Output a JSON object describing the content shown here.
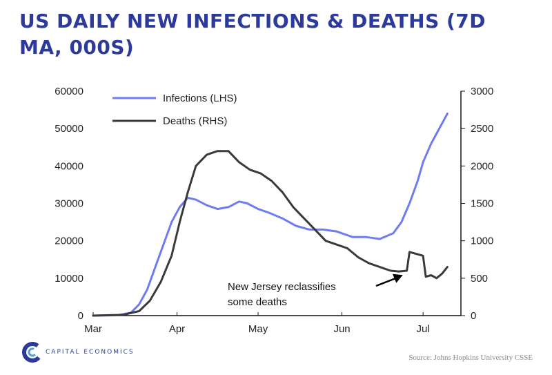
{
  "brand": {
    "name": "CAPITAL ECONOMICS",
    "accent": "#2b3a9b"
  },
  "source": "Source: Johns Hopkins University CSSE",
  "chart_data": {
    "type": "line",
    "title": "US DAILY NEW INFECTIONS & DEATHS (7D MA, 000S)",
    "x_tick_labels": [
      "Mar",
      "Apr",
      "May",
      "Jun",
      "Jul"
    ],
    "y_left": {
      "ylim": [
        0,
        60000
      ],
      "ticks": [
        "0",
        "10000",
        "20000",
        "30000",
        "40000",
        "50000",
        "60000"
      ]
    },
    "y_right": {
      "ylim": [
        0,
        3000
      ],
      "ticks": [
        "0",
        "500",
        "1000",
        "1500",
        "2000",
        "2500",
        "3000"
      ]
    },
    "legend_position": "top-left",
    "grid": false,
    "series": [
      {
        "name": "Infections (LHS)",
        "axis": "left",
        "color": "#6f7bf2",
        "x": [
          "2020-03-01",
          "2020-03-10",
          "2020-03-15",
          "2020-03-18",
          "2020-03-21",
          "2020-03-24",
          "2020-03-27",
          "2020-03-30",
          "2020-04-02",
          "2020-04-05",
          "2020-04-08",
          "2020-04-12",
          "2020-04-16",
          "2020-04-20",
          "2020-04-24",
          "2020-04-27",
          "2020-05-01",
          "2020-05-05",
          "2020-05-10",
          "2020-05-15",
          "2020-05-20",
          "2020-05-25",
          "2020-05-30",
          "2020-06-05",
          "2020-06-10",
          "2020-06-15",
          "2020-06-20",
          "2020-06-23",
          "2020-06-26",
          "2020-06-29",
          "2020-07-01",
          "2020-07-04",
          "2020-07-07",
          "2020-07-10"
        ],
        "values": [
          0,
          100,
          800,
          3000,
          7000,
          13000,
          19000,
          25000,
          29000,
          31500,
          31000,
          29500,
          28500,
          29000,
          30500,
          30000,
          28500,
          27500,
          26000,
          24000,
          23000,
          23000,
          22500,
          21000,
          21000,
          20500,
          22000,
          25000,
          30000,
          36000,
          41000,
          46000,
          50000,
          54000
        ]
      },
      {
        "name": "Deaths (RHS)",
        "axis": "right",
        "color": "#3a3a3a",
        "x": [
          "2020-03-01",
          "2020-03-12",
          "2020-03-18",
          "2020-03-22",
          "2020-03-26",
          "2020-03-30",
          "2020-04-02",
          "2020-04-05",
          "2020-04-08",
          "2020-04-12",
          "2020-04-16",
          "2020-04-20",
          "2020-04-24",
          "2020-04-28",
          "2020-05-02",
          "2020-05-06",
          "2020-05-10",
          "2020-05-14",
          "2020-05-18",
          "2020-05-22",
          "2020-05-26",
          "2020-05-30",
          "2020-06-03",
          "2020-06-07",
          "2020-06-11",
          "2020-06-15",
          "2020-06-19",
          "2020-06-22",
          "2020-06-25",
          "2020-06-26",
          "2020-06-29",
          "2020-07-01",
          "2020-07-02",
          "2020-07-04",
          "2020-07-06",
          "2020-07-08",
          "2020-07-10"
        ],
        "values": [
          0,
          10,
          60,
          200,
          450,
          800,
          1250,
          1650,
          2000,
          2150,
          2200,
          2200,
          2050,
          1950,
          1900,
          1800,
          1650,
          1450,
          1300,
          1150,
          1000,
          950,
          900,
          780,
          700,
          650,
          600,
          590,
          600,
          850,
          820,
          800,
          520,
          540,
          500,
          560,
          650
        ]
      }
    ],
    "annotations": [
      {
        "text_lines": [
          "New Jersey reclassifies",
          "some deaths"
        ],
        "arrow_to": {
          "x": "2020-06-24",
          "y_right": 560
        }
      }
    ]
  }
}
